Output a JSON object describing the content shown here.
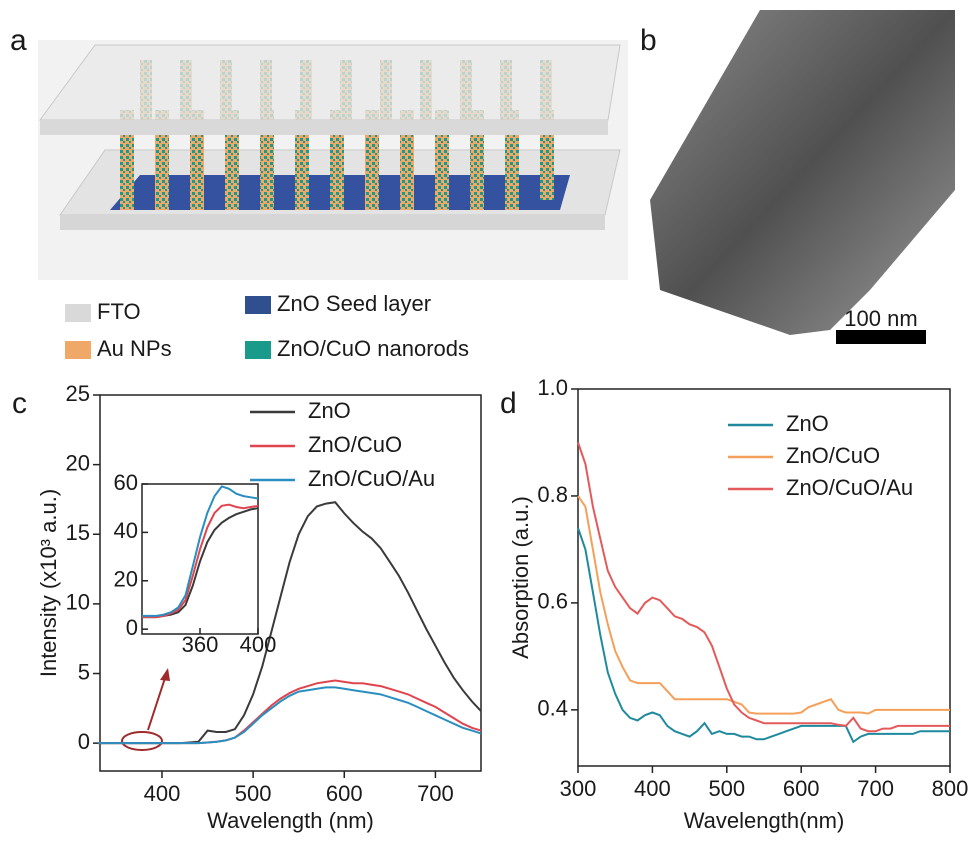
{
  "figure": {
    "panel_labels": [
      "a",
      "b",
      "c",
      "d"
    ],
    "schematic_legend": [
      {
        "label": "FTO",
        "color": "#d9d9d9"
      },
      {
        "label": "Au NPs",
        "color": "#f0a868"
      },
      {
        "label": "ZnO Seed layer",
        "color": "#2f4f8f"
      },
      {
        "label": "ZnO/CuO nanorods",
        "color": "#1a9a8a"
      }
    ],
    "scale_bar": "100 nm"
  },
  "chart_data": [
    {
      "type": "line",
      "xlabel": "Wavelength (nm)",
      "ylabel": "Intensity (x10³ a.u.)",
      "xlim": [
        332,
        750
      ],
      "ylim": [
        -2,
        25
      ],
      "xticks": [
        400,
        500,
        600,
        700
      ],
      "yticks": [
        0,
        5,
        10,
        15,
        20,
        25
      ],
      "grid": false,
      "legend": "top-right",
      "x": [
        330,
        340,
        350,
        360,
        370,
        380,
        390,
        400,
        410,
        420,
        430,
        440,
        450,
        460,
        470,
        480,
        490,
        500,
        510,
        520,
        530,
        540,
        550,
        560,
        570,
        580,
        590,
        600,
        610,
        620,
        630,
        640,
        650,
        660,
        670,
        680,
        690,
        700,
        710,
        720,
        730,
        740,
        750
      ],
      "series": [
        {
          "name": "ZnO",
          "color": "#3a3a3a",
          "values": [
            0,
            0,
            0,
            0,
            0,
            0,
            0,
            0,
            0,
            0,
            0.05,
            0.1,
            0.9,
            0.8,
            0.8,
            1.0,
            2,
            3.5,
            5.5,
            8,
            10.5,
            13,
            15,
            16.3,
            17,
            17.2,
            17.3,
            16.5,
            15.8,
            15.2,
            14.7,
            14,
            13,
            12,
            10.8,
            9.5,
            8.2,
            7,
            5.8,
            4.7,
            3.8,
            3,
            2.3
          ]
        },
        {
          "name": "ZnO/CuO",
          "color": "#e0454f",
          "values": [
            0,
            0,
            0,
            0,
            0,
            0,
            0,
            0,
            0,
            0,
            0,
            0,
            0.05,
            0.1,
            0.2,
            0.4,
            0.9,
            1.5,
            2.1,
            2.7,
            3.2,
            3.6,
            3.9,
            4.1,
            4.3,
            4.4,
            4.5,
            4.4,
            4.3,
            4.3,
            4.2,
            4.1,
            3.9,
            3.7,
            3.5,
            3.2,
            2.9,
            2.6,
            2.2,
            1.8,
            1.4,
            1.1,
            0.9
          ]
        },
        {
          "name": "ZnO/CuO/Au",
          "color": "#2a8fc0",
          "values": [
            0,
            0,
            0,
            0,
            0,
            0,
            0,
            0,
            0,
            0,
            0,
            0,
            0.05,
            0.1,
            0.2,
            0.4,
            0.8,
            1.4,
            2,
            2.5,
            3,
            3.4,
            3.7,
            3.8,
            3.9,
            4.0,
            4.0,
            3.9,
            3.8,
            3.7,
            3.6,
            3.5,
            3.3,
            3.1,
            2.9,
            2.6,
            2.3,
            2.0,
            1.7,
            1.4,
            1.1,
            0.9,
            0.7
          ]
        }
      ]
    },
    {
      "type": "line",
      "xlim": [
        320,
        400
      ],
      "ylim": [
        -2,
        60
      ],
      "xticks": [
        360,
        400
      ],
      "yticks": [
        0,
        20,
        40,
        60
      ],
      "grid": false,
      "x": [
        320,
        325,
        330,
        335,
        340,
        345,
        350,
        355,
        360,
        365,
        370,
        375,
        380,
        385,
        390,
        395,
        400
      ],
      "series": [
        {
          "name": "ZnO",
          "color": "#3a3a3a",
          "values": [
            5,
            5,
            5,
            5.5,
            6,
            7,
            10,
            18,
            28,
            36,
            41,
            44,
            46,
            47.5,
            48.5,
            49.5,
            50
          ]
        },
        {
          "name": "ZnO/CuO",
          "color": "#e0454f",
          "values": [
            5,
            5,
            5,
            5.5,
            6.5,
            8,
            12,
            22,
            33,
            42,
            48,
            51,
            51.5,
            50.5,
            50,
            50.5,
            51
          ]
        },
        {
          "name": "ZnO/CuO/Au",
          "color": "#2a8fc0",
          "values": [
            5.5,
            5.5,
            5.5,
            6,
            7,
            9,
            14,
            26,
            38,
            48,
            55,
            59,
            58,
            56,
            55,
            54.5,
            54
          ]
        }
      ]
    },
    {
      "type": "line",
      "xlabel": "Wavelength(nm)",
      "ylabel": "Absorption (a.u.)",
      "xlim": [
        300,
        800
      ],
      "ylim": [
        0.295,
        1.0
      ],
      "xticks": [
        300,
        400,
        500,
        600,
        700,
        800
      ],
      "yticks": [
        0.4,
        0.6,
        0.8,
        {
          "value": 1.0,
          "label": "1.0"
        }
      ],
      "grid": false,
      "legend": "top-right",
      "x": [
        300,
        310,
        320,
        330,
        340,
        350,
        360,
        370,
        380,
        390,
        400,
        410,
        420,
        430,
        440,
        450,
        460,
        470,
        480,
        490,
        500,
        510,
        520,
        530,
        540,
        550,
        560,
        570,
        580,
        590,
        600,
        610,
        620,
        630,
        640,
        650,
        660,
        670,
        680,
        690,
        700,
        710,
        720,
        730,
        740,
        750,
        760,
        770,
        780,
        790,
        800
      ],
      "series": [
        {
          "name": "ZnO",
          "color": "#1f8a9e",
          "values": [
            0.74,
            0.7,
            0.62,
            0.54,
            0.47,
            0.43,
            0.4,
            0.385,
            0.38,
            0.39,
            0.395,
            0.39,
            0.37,
            0.36,
            0.355,
            0.35,
            0.36,
            0.375,
            0.355,
            0.36,
            0.355,
            0.355,
            0.35,
            0.35,
            0.345,
            0.345,
            0.35,
            0.355,
            0.36,
            0.365,
            0.37,
            0.37,
            0.37,
            0.37,
            0.37,
            0.37,
            0.37,
            0.34,
            0.35,
            0.355,
            0.355,
            0.355,
            0.355,
            0.355,
            0.355,
            0.355,
            0.36,
            0.36,
            0.36,
            0.36,
            0.36
          ]
        },
        {
          "name": "ZnO/CuO",
          "color": "#f5a05a",
          "values": [
            0.8,
            0.78,
            0.7,
            0.62,
            0.56,
            0.51,
            0.48,
            0.455,
            0.45,
            0.45,
            0.45,
            0.45,
            0.435,
            0.42,
            0.42,
            0.42,
            0.42,
            0.42,
            0.42,
            0.42,
            0.42,
            0.415,
            0.41,
            0.395,
            0.393,
            0.393,
            0.393,
            0.393,
            0.393,
            0.393,
            0.395,
            0.405,
            0.41,
            0.415,
            0.42,
            0.4,
            0.395,
            0.395,
            0.395,
            0.393,
            0.4,
            0.4,
            0.4,
            0.4,
            0.4,
            0.4,
            0.4,
            0.4,
            0.4,
            0.4,
            0.4
          ]
        },
        {
          "name": "ZnO/CuO/Au",
          "color": "#e45a5a",
          "values": [
            0.9,
            0.86,
            0.78,
            0.72,
            0.66,
            0.63,
            0.61,
            0.59,
            0.58,
            0.6,
            0.61,
            0.605,
            0.59,
            0.575,
            0.57,
            0.56,
            0.555,
            0.545,
            0.52,
            0.48,
            0.44,
            0.41,
            0.395,
            0.385,
            0.38,
            0.375,
            0.375,
            0.375,
            0.375,
            0.375,
            0.375,
            0.375,
            0.375,
            0.375,
            0.375,
            0.372,
            0.37,
            0.385,
            0.365,
            0.36,
            0.36,
            0.365,
            0.365,
            0.37,
            0.37,
            0.37,
            0.37,
            0.37,
            0.37,
            0.37,
            0.37
          ]
        }
      ]
    }
  ]
}
